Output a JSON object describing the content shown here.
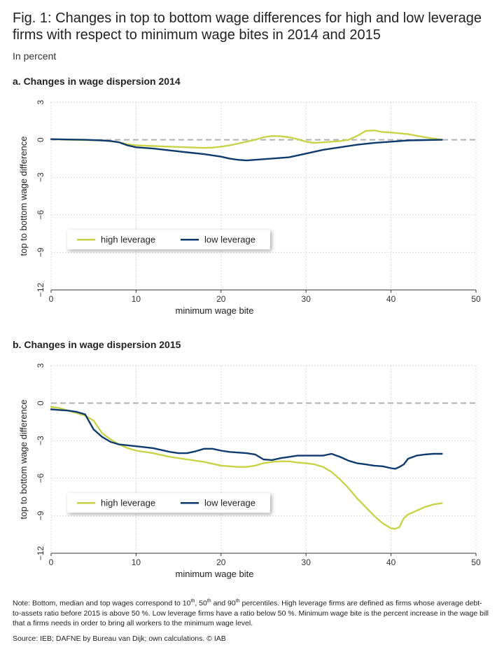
{
  "title": "Fig. 1: Changes in top to bottom wage differences for high and low leverage firms with respect to minimum wage bites in 2014 and 2015",
  "subtitle": "In percent",
  "colors": {
    "high_leverage": "#c8d346",
    "low_leverage": "#0d3b6e",
    "zero_line": "#b0b0b0",
    "grid": "#d0d0d0"
  },
  "chart_data": [
    {
      "type": "line",
      "title": "a. Changes in wage dispersion 2014",
      "xlabel": "minimum wage bite",
      "ylabel": "top to bottom wage difference",
      "xlim": [
        0,
        50
      ],
      "ylim": [
        -12,
        3
      ],
      "xticks": [
        0,
        10,
        20,
        30,
        40,
        50
      ],
      "yticks": [
        3,
        0,
        -3,
        -6,
        -9,
        -12
      ],
      "ytick_labels": [
        "3",
        "0",
        "−3",
        "−6",
        "−9",
        "−12"
      ],
      "grid": true,
      "legend_position": "lower-left",
      "series": [
        {
          "name": "high leverage",
          "x": [
            0,
            2,
            4,
            6,
            7,
            8,
            9,
            10,
            12,
            14,
            16,
            18,
            19,
            20,
            21,
            22,
            23,
            24,
            25,
            26,
            27,
            28,
            29,
            30,
            31,
            32,
            33,
            34,
            35,
            36,
            37,
            38,
            39,
            40,
            42,
            44,
            46
          ],
          "y": [
            0.05,
            0.0,
            -0.02,
            -0.05,
            -0.1,
            -0.2,
            -0.35,
            -0.45,
            -0.5,
            -0.55,
            -0.6,
            -0.65,
            -0.62,
            -0.55,
            -0.45,
            -0.3,
            -0.15,
            0.0,
            0.2,
            0.3,
            0.28,
            0.2,
            0.05,
            -0.15,
            -0.25,
            -0.2,
            -0.15,
            -0.1,
            0.0,
            0.3,
            0.7,
            0.75,
            0.62,
            0.58,
            0.45,
            0.2,
            0.0
          ]
        },
        {
          "name": "low leverage",
          "x": [
            0,
            2,
            4,
            6,
            7,
            8,
            9,
            10,
            12,
            14,
            16,
            18,
            20,
            21,
            22,
            23,
            24,
            25,
            26,
            28,
            30,
            32,
            34,
            36,
            38,
            40,
            42,
            44,
            46
          ],
          "y": [
            0.05,
            0.02,
            0.0,
            -0.05,
            -0.1,
            -0.2,
            -0.45,
            -0.6,
            -0.7,
            -0.85,
            -1.0,
            -1.15,
            -1.35,
            -1.5,
            -1.6,
            -1.65,
            -1.6,
            -1.55,
            -1.5,
            -1.4,
            -1.1,
            -0.8,
            -0.6,
            -0.4,
            -0.25,
            -0.15,
            -0.05,
            -0.02,
            0.0
          ]
        }
      ]
    },
    {
      "type": "line",
      "title": "b. Changes in wage dispersion 2015",
      "xlabel": "minimum wage bite",
      "ylabel": "top to bottom wage difference",
      "xlim": [
        0,
        50
      ],
      "ylim": [
        -12,
        3
      ],
      "xticks": [
        0,
        10,
        20,
        30,
        40,
        50
      ],
      "yticks": [
        3,
        0,
        -3,
        -6,
        -9,
        -12
      ],
      "ytick_labels": [
        "3",
        "0",
        "−3",
        "−6",
        "−9",
        "−12"
      ],
      "grid": true,
      "legend_position": "lower-left",
      "series": [
        {
          "name": "high leverage",
          "x": [
            0,
            1,
            2,
            3,
            4,
            5,
            6,
            7,
            8,
            9,
            10,
            12,
            14,
            16,
            18,
            20,
            22,
            23,
            24,
            25,
            26,
            27,
            28,
            29,
            30,
            31,
            32,
            33,
            34,
            35,
            36,
            37,
            38,
            39,
            40,
            40.5,
            41,
            41.5,
            42,
            43,
            44,
            45,
            46
          ],
          "y": [
            -0.3,
            -0.4,
            -0.6,
            -0.8,
            -1.0,
            -1.4,
            -2.4,
            -2.9,
            -3.3,
            -3.6,
            -3.8,
            -4.0,
            -4.3,
            -4.5,
            -4.7,
            -5.0,
            -5.1,
            -5.1,
            -5.0,
            -4.8,
            -4.7,
            -4.65,
            -4.65,
            -4.75,
            -4.8,
            -4.9,
            -5.1,
            -5.5,
            -6.1,
            -6.8,
            -7.6,
            -8.3,
            -9.0,
            -9.6,
            -10.0,
            -10.05,
            -9.9,
            -9.2,
            -8.9,
            -8.6,
            -8.3,
            -8.1,
            -8.0
          ]
        },
        {
          "name": "low leverage",
          "x": [
            0,
            1,
            2,
            3,
            4,
            5,
            6,
            7,
            8,
            10,
            12,
            14,
            15,
            16,
            17,
            18,
            19,
            20,
            21,
            22,
            23,
            24,
            25,
            26,
            27,
            28,
            29,
            30,
            31,
            32,
            33,
            34,
            35,
            36,
            37,
            38,
            39,
            40,
            40.5,
            41,
            41.5,
            42,
            43,
            44,
            45,
            46
          ],
          "y": [
            -0.5,
            -0.55,
            -0.6,
            -0.7,
            -0.9,
            -2.1,
            -2.7,
            -3.1,
            -3.3,
            -3.45,
            -3.6,
            -3.9,
            -4.0,
            -4.0,
            -3.85,
            -3.65,
            -3.65,
            -3.8,
            -3.9,
            -3.95,
            -4.0,
            -4.1,
            -4.5,
            -4.55,
            -4.4,
            -4.3,
            -4.2,
            -4.2,
            -4.2,
            -4.2,
            -4.05,
            -4.3,
            -4.6,
            -4.8,
            -4.9,
            -5.0,
            -5.05,
            -5.2,
            -5.25,
            -5.1,
            -4.9,
            -4.45,
            -4.2,
            -4.1,
            -4.05,
            -4.05
          ]
        }
      ]
    }
  ],
  "note": "Note: Bottom, median and top wages correspond to 10th, 50th and 90th percentiles. High leverage firms are defined as firms whose average debt-to-assets ratio before 2015 is above 50 %. Low leverage firms have a ratio below 50 %. Minimum wage bite is the percent increase in the wage bill that a firms needs in order to bring all workers to the minimum wage level.",
  "note_parts": {
    "p1": "Note: Bottom, median and top wages correspond to 10",
    "sup1": "th",
    "p2": ", 50",
    "sup2": "th",
    "p3": " and 90",
    "sup3": "th",
    "p4": " percentiles. High leverage firms are defined as firms whose average debt-to-assets ratio before 2015 is above 50 %. Low leverage firms have a ratio below 50 %. Minimum wage bite is the percent increase in the wage bill that a firms needs in order to bring all workers to the minimum wage level."
  },
  "source": "Source: IEB; DAFNE by Bureau van Dijk; own calculations.  © IAB"
}
